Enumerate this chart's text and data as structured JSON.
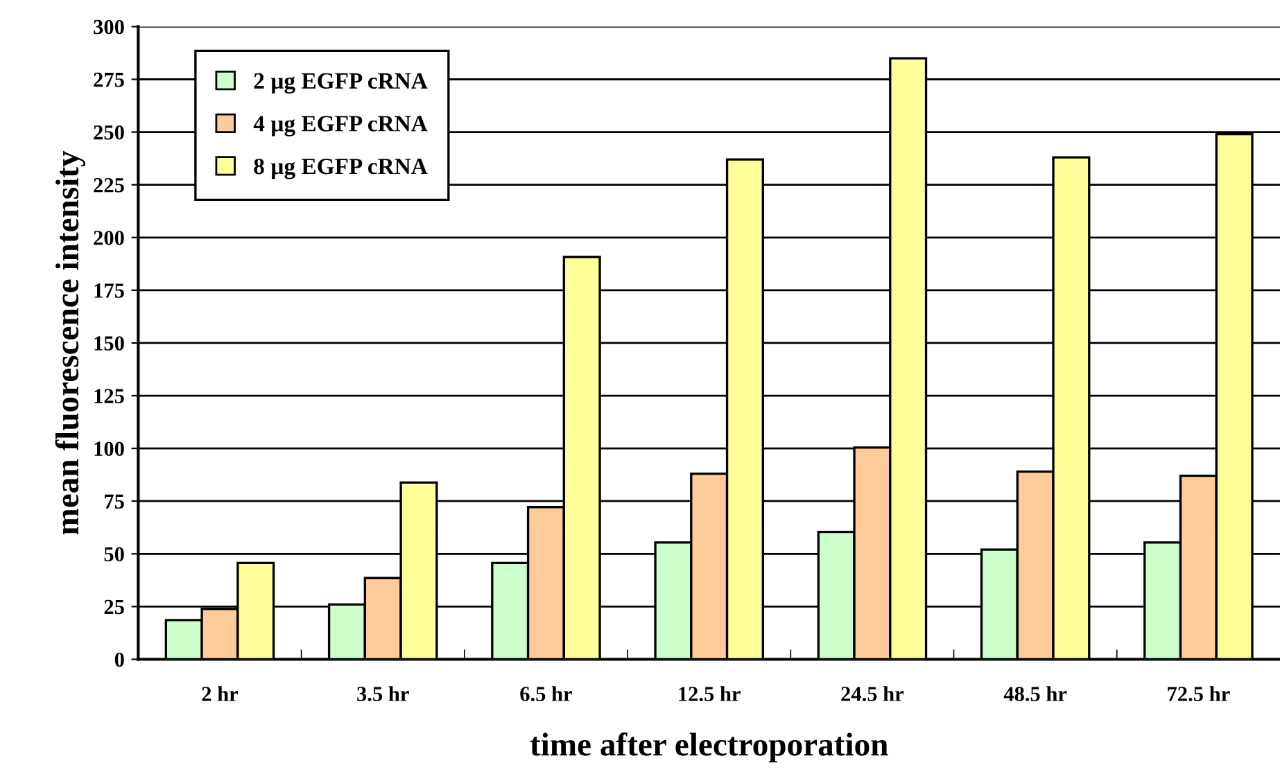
{
  "chart_data": {
    "type": "bar",
    "xlabel": "time after electroporation",
    "ylabel": "mean fluorescence intensity",
    "categories": [
      "2 hr",
      "3.5 hr",
      "6.5 hr",
      "12.5 hr",
      "24.5 hr",
      "48.5 hr",
      "72.5 hr"
    ],
    "series": [
      {
        "name": "2 µg EGFP cRNA",
        "color": "#ccffcc",
        "values": [
          18.6,
          26,
          45.7,
          55.4,
          60.4,
          52,
          55.4
        ]
      },
      {
        "name": "4 µg EGFP cRNA",
        "color": "#ffcc99",
        "values": [
          23.9,
          38.5,
          72.2,
          88,
          100.4,
          89,
          87
        ]
      },
      {
        "name": "8 µg EGFP cRNA",
        "color": "#ffff99",
        "values": [
          45.7,
          83.8,
          190.8,
          237,
          285,
          238,
          249
        ]
      }
    ],
    "ylim": [
      0,
      300
    ],
    "yticks": [
      0,
      25,
      50,
      75,
      100,
      125,
      150,
      175,
      200,
      225,
      250,
      275,
      300
    ],
    "grid": "y",
    "legend": "top left"
  }
}
